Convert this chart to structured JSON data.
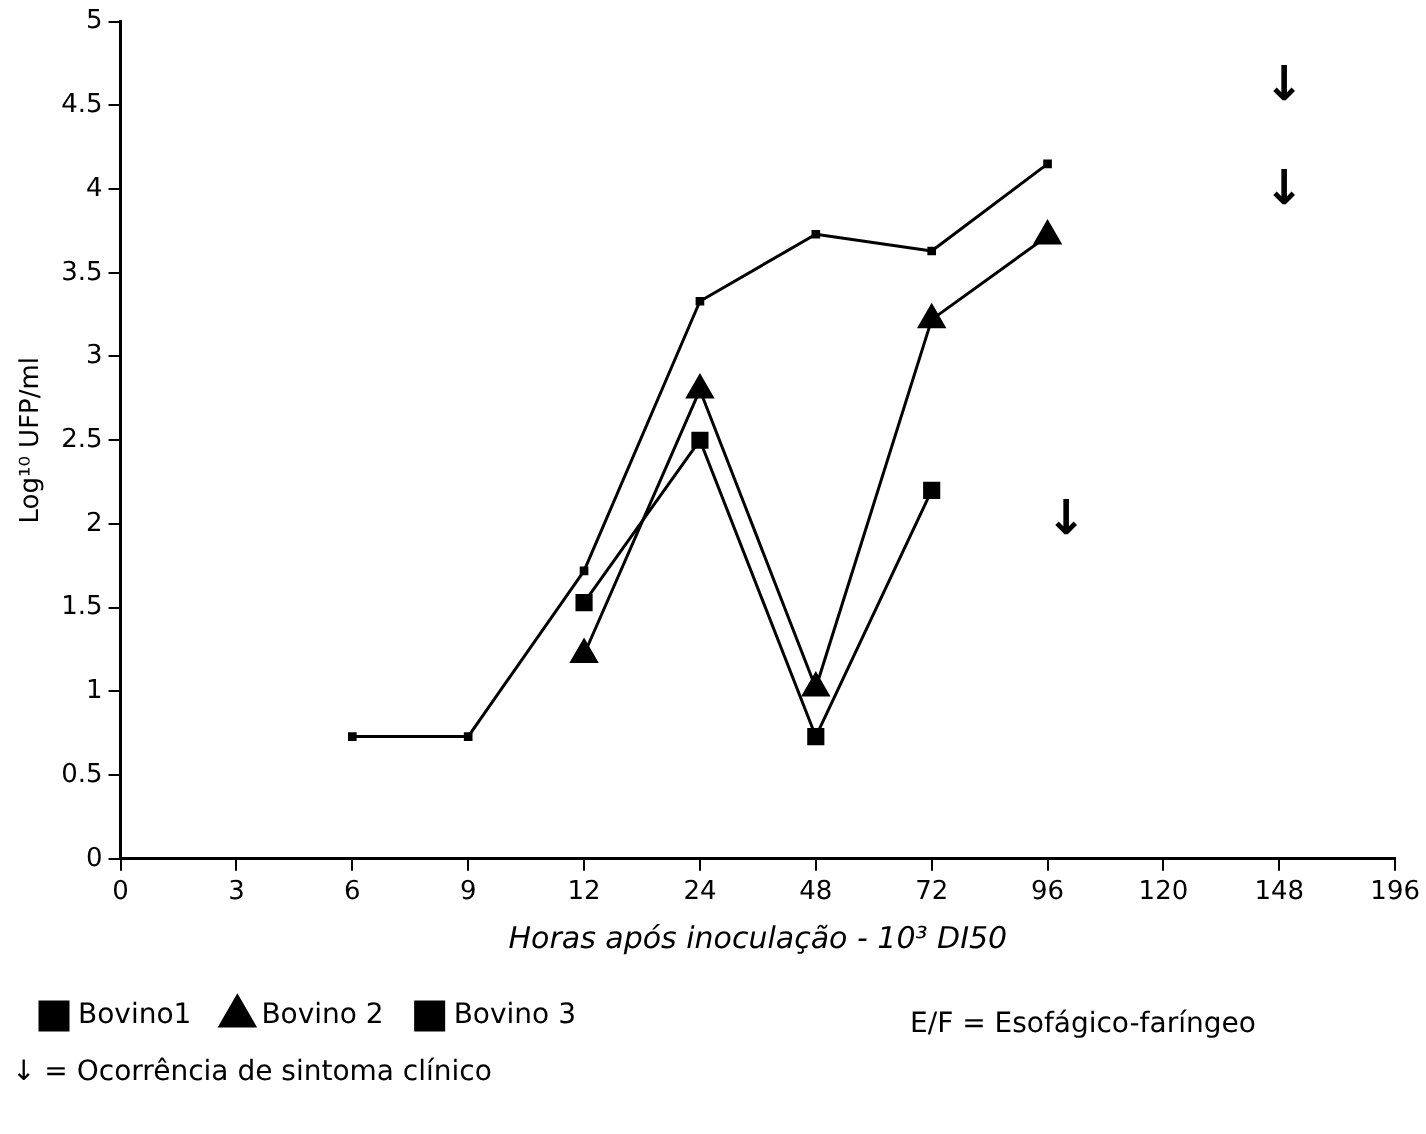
{
  "chart_data": {
    "type": "line",
    "xlabel": "Horas após inoculação - 10³ DI50",
    "ylabel": "Log¹⁰ UFP/ml",
    "categories": [
      "0",
      "3",
      "6",
      "9",
      "12",
      "24",
      "48",
      "72",
      "96",
      "120",
      "148",
      "196"
    ],
    "ylim": [
      0,
      5
    ],
    "yticks": [
      0,
      0.5,
      1,
      1.5,
      2,
      2.5,
      3,
      3.5,
      4,
      4.5,
      5
    ],
    "grid": false,
    "legend": "bottom",
    "line_style": "solid",
    "series": [
      {
        "name": "Bovino1",
        "color": "#000000",
        "marker": "square",
        "values": [
          null,
          null,
          0.73,
          0.73,
          1.72,
          3.33,
          3.73,
          3.63,
          4.15,
          null,
          null,
          null
        ]
      },
      {
        "name": "Bovino 2",
        "color": "#000000",
        "marker": "triangle",
        "values": [
          null,
          null,
          null,
          null,
          1.22,
          2.8,
          1.02,
          3.22,
          3.72,
          null,
          null,
          null
        ]
      },
      {
        "name": "Bovino 3",
        "color": "#000000",
        "marker": "square",
        "values": [
          null,
          null,
          null,
          null,
          1.53,
          2.5,
          0.73,
          2.2,
          null,
          null,
          null,
          null
        ]
      }
    ],
    "annotations": [
      "E/F = Esofágico-faríngeo",
      "↓ = Ocorrência de sintoma clínico",
      "↓",
      "↓",
      "↓"
    ]
  }
}
